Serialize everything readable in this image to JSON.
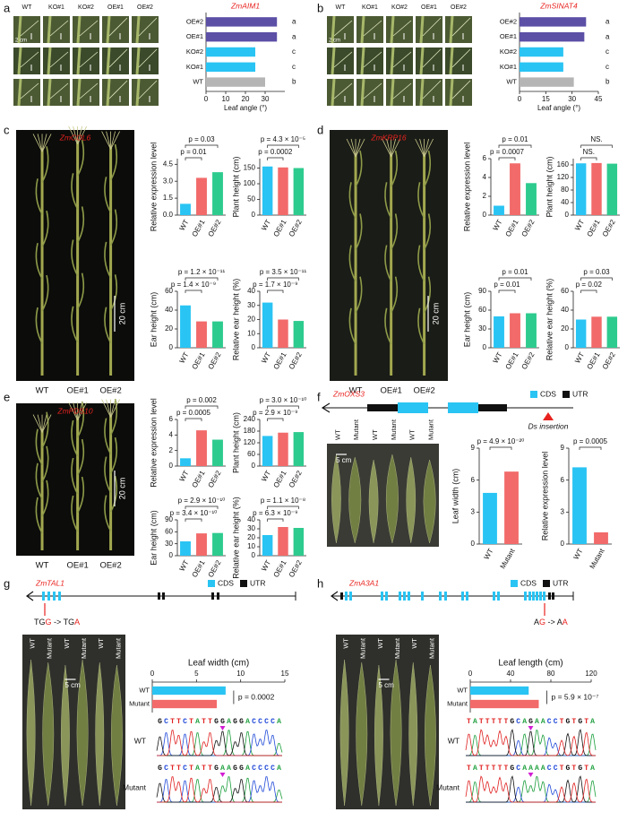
{
  "figure": {
    "panel_letters": [
      "a",
      "b",
      "c",
      "d",
      "e",
      "f",
      "g",
      "h"
    ],
    "a": {
      "photo_columns": [
        "WT",
        "KO#1",
        "KO#2",
        "OE#1",
        "OE#2"
      ],
      "scale_bar": "2 cm"
    },
    "b": {
      "photo_columns": [
        "WT",
        "KO#1",
        "KO#2",
        "OE#1",
        "OE#2"
      ],
      "scale_bar": "2 cm"
    },
    "c": {
      "gene": "ZmCOL6",
      "plants": [
        "WT",
        "OE#1",
        "OE#2"
      ],
      "scale_bar": "20 cm"
    },
    "d": {
      "gene": "ZmKRP16",
      "plants": [
        "WT",
        "OE#1",
        "OE#2"
      ],
      "scale_bar": "20 cm"
    },
    "e": {
      "gene": "ZmPDS10",
      "plants": [
        "WT",
        "OE#1",
        "OE#2"
      ],
      "scale_bar": "20 cm"
    },
    "f": {
      "gene": "ZmOXS3",
      "legend": [
        "CDS",
        "UTR"
      ],
      "insertion": "Ds insertion",
      "photo_columns": [
        "WT",
        "Mutant",
        "WT",
        "Mutant",
        "WT",
        "Mutant"
      ],
      "scale_bar": "5 cm"
    },
    "g": {
      "gene": "ZmTAL1",
      "legend": [
        "CDS",
        "UTR"
      ],
      "mutation": [
        "TG",
        "G",
        " -> TG",
        "A"
      ],
      "photo_columns": [
        "WT",
        "Mutant",
        "WT",
        "Mutant",
        "WT",
        "Mutant"
      ],
      "scale_bar": "5 cm",
      "sequences": [
        {
          "label": "WT",
          "bases": "GCTTCTATTGGAGGACCCCA"
        },
        {
          "label": "Mutant",
          "bases": "GCTTCTATTGAAGGACCCCA"
        }
      ]
    },
    "h": {
      "gene": "ZmA3A1",
      "legend": [
        "CDS",
        "UTR"
      ],
      "mutation": [
        "A",
        "G",
        " -> A",
        "A"
      ],
      "photo_columns": [
        "WT",
        "Mutant",
        "WT",
        "Mutant",
        "WT",
        "Mutant"
      ],
      "scale_bar": "5 cm",
      "sequences": [
        {
          "label": "WT",
          "bases": "TATTTTTGCAGAACCTGTGTA"
        },
        {
          "label": "Mutant",
          "bases": "TATTTTTGCAAAACCTGTGTA"
        }
      ]
    }
  },
  "chart_data": [
    {
      "type": "bar",
      "orientation": "horizontal",
      "title": "ZmAIM1",
      "x_label": "Leaf angle (°)",
      "categories": [
        "OE#2",
        "OE#1",
        "KO#2",
        "KO#1",
        "WT"
      ],
      "values": [
        36,
        36,
        25,
        25,
        30
      ],
      "colors": [
        "#5b4fa6",
        "#5b4fa6",
        "#29c4f3",
        "#29c4f3",
        "#b5b5b5"
      ],
      "xlim": [
        0,
        40
      ],
      "xticks": [
        0,
        10,
        20,
        30
      ],
      "annotations": [
        "a",
        "a",
        "c",
        "c",
        "b"
      ]
    },
    {
      "type": "bar",
      "orientation": "horizontal",
      "title": "ZmSINAT4",
      "x_label": "Leaf angle (°)",
      "categories": [
        "OE#2",
        "OE#1",
        "KO#2",
        "KO#1",
        "WT"
      ],
      "values": [
        38,
        37,
        25,
        25,
        31
      ],
      "colors": [
        "#5b4fa6",
        "#5b4fa6",
        "#29c4f3",
        "#29c4f3",
        "#b5b5b5"
      ],
      "xlim": [
        0,
        45
      ],
      "xticks": [
        0,
        15,
        30,
        45
      ],
      "annotations": [
        "a",
        "a",
        "c",
        "c",
        "b"
      ]
    },
    {
      "type": "bar",
      "y_label": "Relative expression level",
      "categories": [
        "WT",
        "OE#1",
        "OE#2"
      ],
      "values": [
        1,
        3.3,
        3.8
      ],
      "colors": [
        "#29c4f3",
        "#f26a6a",
        "#2ecb8e"
      ],
      "ylim": [
        0,
        5
      ],
      "yticks": [
        {
          "value": 0,
          "label": "0.0"
        },
        1.5,
        {
          "value": 3,
          "label": "3.0"
        },
        4.5
      ],
      "p_values": [
        "p = 0.03",
        "p = 0.01"
      ]
    },
    {
      "type": "bar",
      "y_label": "Plant height (cm)",
      "categories": [
        "WT",
        "OE#1",
        "OE#2"
      ],
      "values": [
        155,
        152,
        150
      ],
      "colors": [
        "#29c4f3",
        "#f26a6a",
        "#2ecb8e"
      ],
      "ylim": [
        0,
        180
      ],
      "yticks": [
        0,
        50,
        100,
        150
      ],
      "p_values": [
        "p = 4.3 × 10⁻⁵",
        "p = 0.0002"
      ]
    },
    {
      "type": "bar",
      "y_label": "Ear height (cm)",
      "categories": [
        "WT",
        "OE#1",
        "OE#2"
      ],
      "values": [
        45,
        28,
        28
      ],
      "colors": [
        "#29c4f3",
        "#f26a6a",
        "#2ecb8e"
      ],
      "ylim": [
        0,
        60
      ],
      "yticks": [
        0,
        20,
        40,
        60
      ],
      "p_values": [
        "p = 1.2 × 10⁻¹¹",
        "p = 1.4 × 10⁻⁹"
      ]
    },
    {
      "type": "bar",
      "y_label": "Relative ear height (%)",
      "categories": [
        "WT",
        "OE#1",
        "OE#2"
      ],
      "values": [
        32,
        20,
        19
      ],
      "colors": [
        "#29c4f3",
        "#f26a6a",
        "#2ecb8e"
      ],
      "ylim": [
        0,
        40
      ],
      "yticks": [
        0,
        10,
        20,
        30,
        40
      ],
      "p_values": [
        "p = 3.5 × 10⁻¹¹",
        "p = 1.7 × 10⁻⁹"
      ]
    },
    {
      "type": "bar",
      "y_label": "Relative expression level",
      "categories": [
        "WT",
        "OE#1",
        "OE#2"
      ],
      "values": [
        1,
        5.5,
        3.4
      ],
      "colors": [
        "#29c4f3",
        "#f26a6a",
        "#2ecb8e"
      ],
      "ylim": [
        0,
        6
      ],
      "yticks": [
        0,
        2,
        4,
        6
      ],
      "p_values": [
        "p = 0.01",
        "p = 0.0007"
      ]
    },
    {
      "type": "bar",
      "y_label": "Plant height (cm)",
      "categories": [
        "WT",
        "OE#1",
        "OE#2"
      ],
      "values": [
        165,
        166,
        164
      ],
      "colors": [
        "#29c4f3",
        "#f26a6a",
        "#2ecb8e"
      ],
      "ylim": [
        0,
        180
      ],
      "yticks": [
        0,
        40,
        80,
        120,
        160
      ],
      "p_values": [
        "NS.",
        "NS."
      ]
    },
    {
      "type": "bar",
      "y_label": "Ear height (cm)",
      "categories": [
        "WT",
        "OE#1",
        "OE#2"
      ],
      "values": [
        50,
        55,
        55
      ],
      "colors": [
        "#29c4f3",
        "#f26a6a",
        "#2ecb8e"
      ],
      "ylim": [
        0,
        90
      ],
      "yticks": [
        0,
        30,
        60,
        90
      ],
      "p_values": [
        "p = 0.01",
        "p = 0.01"
      ]
    },
    {
      "type": "bar",
      "y_label": "Relative ear height (%)",
      "categories": [
        "WT",
        "OE#1",
        "OE#2"
      ],
      "values": [
        30,
        33,
        33
      ],
      "colors": [
        "#29c4f3",
        "#f26a6a",
        "#2ecb8e"
      ],
      "ylim": [
        0,
        60
      ],
      "yticks": [
        0,
        20,
        40,
        60
      ],
      "p_values": [
        "p = 0.03",
        "p = 0.02"
      ]
    },
    {
      "type": "bar",
      "y_label": "Relative expression level",
      "categories": [
        "WT",
        "OE#1",
        "OE#2"
      ],
      "values": [
        1,
        4.6,
        3.4
      ],
      "colors": [
        "#29c4f3",
        "#f26a6a",
        "#2ecb8e"
      ],
      "ylim": [
        0,
        6
      ],
      "yticks": [
        0,
        2,
        4,
        6
      ],
      "p_values": [
        "p = 0.002",
        "p = 0.0005"
      ]
    },
    {
      "type": "bar",
      "y_label": "Plant height (cm)",
      "categories": [
        "WT",
        "OE#1",
        "OE#2"
      ],
      "values": [
        155,
        172,
        175
      ],
      "colors": [
        "#29c4f3",
        "#f26a6a",
        "#2ecb8e"
      ],
      "ylim": [
        0,
        240
      ],
      "yticks": [
        0,
        60,
        120,
        180,
        240
      ],
      "p_values": [
        "p = 3.0 × 10⁻¹⁰",
        "p = 2.9 × 10⁻⁹"
      ]
    },
    {
      "type": "bar",
      "y_label": "Ear height (cm)",
      "categories": [
        "WT",
        "OE#1",
        "OE#2"
      ],
      "values": [
        36,
        56,
        57
      ],
      "colors": [
        "#29c4f3",
        "#f26a6a",
        "#2ecb8e"
      ],
      "ylim": [
        0,
        90
      ],
      "yticks": [
        0,
        30,
        60,
        90
      ],
      "p_values": [
        "p = 2.9 × 10⁻¹⁰",
        "p = 3.4 × 10⁻¹⁰"
      ]
    },
    {
      "type": "bar",
      "y_label": "Relative ear height (%)",
      "categories": [
        "WT",
        "OE#1",
        "OE#2"
      ],
      "values": [
        23,
        32,
        31
      ],
      "colors": [
        "#29c4f3",
        "#f26a6a",
        "#2ecb8e"
      ],
      "ylim": [
        0,
        40
      ],
      "yticks": [
        0,
        10,
        20,
        30,
        40
      ],
      "p_values": [
        "p = 1.1 × 10⁻⁸",
        "p = 6.3 × 10⁻⁹"
      ]
    },
    {
      "type": "bar",
      "y_label": "Leaf width (cm)",
      "categories": [
        "WT",
        "Mutant"
      ],
      "values": [
        4.8,
        6.8
      ],
      "colors": [
        "#29c4f3",
        "#f26a6a"
      ],
      "ylim": [
        0,
        9
      ],
      "yticks": [
        0,
        3,
        6,
        9
      ],
      "p_values": [
        "p = 4.9 × 10⁻²⁰"
      ]
    },
    {
      "type": "bar",
      "y_label": "Relative expression level",
      "categories": [
        "WT",
        "Mutant"
      ],
      "values": [
        7.2,
        1.1
      ],
      "colors": [
        "#29c4f3",
        "#f26a6a"
      ],
      "ylim": [
        0,
        9
      ],
      "yticks": [
        0,
        3,
        6,
        9
      ],
      "p_values": [
        "p = 0.0005"
      ]
    },
    {
      "type": "bar",
      "orientation": "horizontal",
      "x_label": "Leaf width (cm)",
      "categories": [
        "WT",
        "Mutant"
      ],
      "values": [
        8.3,
        7.3
      ],
      "colors": [
        "#29c4f3",
        "#f26a6a"
      ],
      "xlim": [
        0,
        15
      ],
      "xticks": [
        0,
        5,
        10,
        15
      ],
      "p_values": [
        "p = 0.0002"
      ]
    },
    {
      "type": "bar",
      "orientation": "horizontal",
      "x_label": "Leaf length (cm)",
      "categories": [
        "WT",
        "Mutant"
      ],
      "values": [
        58,
        68
      ],
      "colors": [
        "#29c4f3",
        "#f26a6a"
      ],
      "xlim": [
        0,
        120
      ],
      "xticks": [
        0,
        40,
        80,
        120
      ],
      "p_values": [
        "p = 5.9 × 10⁻⁷"
      ]
    }
  ]
}
